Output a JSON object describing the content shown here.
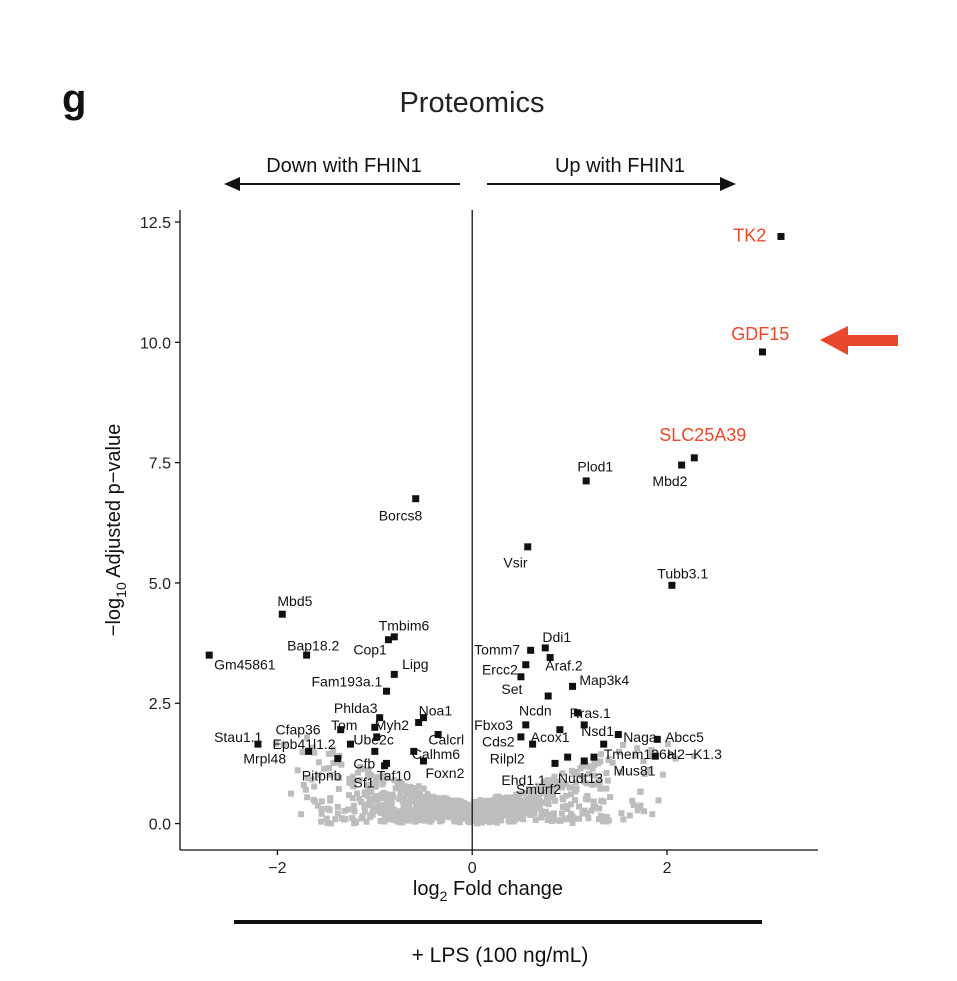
{
  "panel_label": "g",
  "colors": {
    "highlight": "#e8472c",
    "background_points": "#bdbdbd",
    "significant_points": "#111111"
  },
  "chart_data": {
    "type": "scatter",
    "title": "Proteomics",
    "xlabel_main": "log",
    "xlabel_sub": "2",
    "xlabel_rest": " Fold change",
    "ylabel_pre": "−log",
    "ylabel_sub": "10",
    "ylabel_rest": " Adjusted p−value",
    "xlim": [
      -3,
      3.55
    ],
    "ylim": [
      -0.55,
      12.75
    ],
    "xticks": [
      {
        "v": -2,
        "label": "−2"
      },
      {
        "v": 0,
        "label": "0"
      },
      {
        "v": 2,
        "label": "2"
      }
    ],
    "yticks": [
      {
        "v": 0,
        "label": "0.0"
      },
      {
        "v": 2.5,
        "label": "2.5"
      },
      {
        "v": 5,
        "label": "5.0"
      },
      {
        "v": 7.5,
        "label": "7.5"
      },
      {
        "v": 10,
        "label": "10.0"
      },
      {
        "v": 12.5,
        "label": "12.5"
      }
    ],
    "direction_left": "Down with FHIN1",
    "direction_right": "Up with FHIN1",
    "treatment": "+ LPS (100 ng/mL)",
    "significant": [
      {
        "label": "TK2",
        "x": 3.17,
        "y": 12.2,
        "highlight": true,
        "lx": 2.68,
        "ly": 12.2,
        "anchor": "start"
      },
      {
        "label": "GDF15",
        "x": 2.98,
        "y": 9.8,
        "highlight": true,
        "lx": 2.66,
        "ly": 10.15,
        "anchor": "start"
      },
      {
        "label": "SLC25A39",
        "x": 2.28,
        "y": 7.6,
        "highlight": true,
        "lx": 1.92,
        "ly": 8.05,
        "anchor": "start"
      },
      {
        "label": "Mbd2",
        "x": 2.15,
        "y": 7.45,
        "lx": 1.85,
        "ly": 7.12,
        "anchor": "start"
      },
      {
        "label": "Plod1",
        "x": 1.17,
        "y": 7.12,
        "lx": 1.08,
        "ly": 7.42,
        "anchor": "start"
      },
      {
        "label": "Borcs8",
        "x": -0.58,
        "y": 6.75,
        "lx": -0.96,
        "ly": 6.4,
        "anchor": "start"
      },
      {
        "label": "Vsir",
        "x": 0.57,
        "y": 5.75,
        "lx": 0.32,
        "ly": 5.42,
        "anchor": "start"
      },
      {
        "label": "Tubb3.1",
        "x": 2.05,
        "y": 4.95,
        "lx": 1.9,
        "ly": 5.2,
        "anchor": "start"
      },
      {
        "label": "Mbd5",
        "x": -1.95,
        "y": 4.35,
        "lx": -2.0,
        "ly": 4.62,
        "anchor": "start"
      },
      {
        "label": "Tmbim6",
        "x": -0.8,
        "y": 3.88,
        "lx": -0.96,
        "ly": 4.12,
        "anchor": "start"
      },
      {
        "label": "Cop1",
        "x": -0.86,
        "y": 3.82,
        "lx": -1.22,
        "ly": 3.62,
        "anchor": "start"
      },
      {
        "label": "Bap18.2",
        "x": -1.7,
        "y": 3.5,
        "lx": -1.9,
        "ly": 3.7,
        "anchor": "start"
      },
      {
        "label": "Gm45861",
        "x": -2.7,
        "y": 3.5,
        "lx": -2.65,
        "ly": 3.3,
        "anchor": "start"
      },
      {
        "label": "Lipg",
        "x": -0.8,
        "y": 3.1,
        "lx": -0.72,
        "ly": 3.32,
        "anchor": "start"
      },
      {
        "label": "Fam193a.1",
        "x": -0.88,
        "y": 2.75,
        "lx": -1.65,
        "ly": 2.95,
        "anchor": "start"
      },
      {
        "label": "Ddi1",
        "x": 0.75,
        "y": 3.65,
        "lx": 0.72,
        "ly": 3.88,
        "anchor": "start"
      },
      {
        "label": "Tomm7",
        "x": 0.6,
        "y": 3.6,
        "lx": 0.02,
        "ly": 3.62,
        "anchor": "start"
      },
      {
        "label": "Araf.2",
        "x": 0.8,
        "y": 3.45,
        "lx": 0.75,
        "ly": 3.28,
        "anchor": "start"
      },
      {
        "label": "Ercc2",
        "x": 0.55,
        "y": 3.3,
        "lx": 0.1,
        "ly": 3.2,
        "anchor": "start"
      },
      {
        "label": "Set",
        "x": 0.5,
        "y": 3.05,
        "lx": 0.3,
        "ly": 2.8,
        "anchor": "start"
      },
      {
        "label": "Map3k4",
        "x": 1.03,
        "y": 2.85,
        "lx": 1.1,
        "ly": 2.98,
        "anchor": "start"
      },
      {
        "label": "Ncdn",
        "x": 0.78,
        "y": 2.65,
        "lx": 0.48,
        "ly": 2.35,
        "anchor": "start"
      },
      {
        "label": "Rras.1",
        "x": 1.08,
        "y": 2.3,
        "lx": 1.0,
        "ly": 2.3,
        "anchor": "start"
      },
      {
        "label": "Fbxo3",
        "x": 0.55,
        "y": 2.05,
        "lx": 0.02,
        "ly": 2.05,
        "anchor": "start"
      },
      {
        "label": "Nsd1",
        "x": 1.15,
        "y": 2.05,
        "lx": 1.12,
        "ly": 1.92,
        "anchor": "start"
      },
      {
        "label": "Acox1",
        "x": 0.9,
        "y": 1.95,
        "lx": 0.6,
        "ly": 1.8,
        "anchor": "start"
      },
      {
        "label": "Cds2",
        "x": 0.5,
        "y": 1.8,
        "lx": 0.1,
        "ly": 1.7,
        "anchor": "start"
      },
      {
        "label": "Naga",
        "x": 1.5,
        "y": 1.85,
        "lx": 1.55,
        "ly": 1.8,
        "anchor": "start"
      },
      {
        "label": "Abcc5",
        "x": 1.9,
        "y": 1.75,
        "lx": 1.98,
        "ly": 1.8,
        "anchor": "start"
      },
      {
        "label": "Tmem126a",
        "x": 1.35,
        "y": 1.65,
        "lx": 1.35,
        "ly": 1.45,
        "anchor": "start"
      },
      {
        "label": "Rilpl2",
        "x": 0.62,
        "y": 1.65,
        "lx": 0.18,
        "ly": 1.35,
        "anchor": "start"
      },
      {
        "label": "H2−K1.3",
        "x": 1.88,
        "y": 1.4,
        "lx": 2.0,
        "ly": 1.45,
        "anchor": "start"
      },
      {
        "label": "Mus81",
        "x": 1.25,
        "y": 1.38,
        "lx": 1.45,
        "ly": 1.1,
        "anchor": "start"
      },
      {
        "label": "Ehd1.1",
        "x": 0.98,
        "y": 1.38,
        "lx": 0.3,
        "ly": 0.9,
        "anchor": "start"
      },
      {
        "label": "Nudt13",
        "x": 1.15,
        "y": 1.3,
        "lx": 0.88,
        "ly": 0.95,
        "anchor": "start"
      },
      {
        "label": "Smurf2",
        "x": 0.85,
        "y": 1.25,
        "lx": 0.45,
        "ly": 0.72,
        "anchor": "start"
      },
      {
        "label": "Noa1",
        "x": -0.5,
        "y": 2.2,
        "lx": -0.55,
        "ly": 2.35,
        "anchor": "start"
      },
      {
        "label": "Phlda3",
        "x": -0.95,
        "y": 2.2,
        "lx": -1.42,
        "ly": 2.4,
        "anchor": "start"
      },
      {
        "label": "Myh2",
        "x": -0.55,
        "y": 2.1,
        "lx": -1.0,
        "ly": 2.05,
        "anchor": "start"
      },
      {
        "label": "Tom",
        "x": -1.0,
        "y": 2.0,
        "lx": -1.45,
        "ly": 2.05,
        "anchor": "start"
      },
      {
        "label": "Cfap36",
        "x": -1.35,
        "y": 1.95,
        "lx": -2.02,
        "ly": 1.95,
        "anchor": "start"
      },
      {
        "label": "Calcrl",
        "x": -0.35,
        "y": 1.85,
        "lx": -0.45,
        "ly": 1.75,
        "anchor": "start"
      },
      {
        "label": "Ube2c",
        "x": -0.98,
        "y": 1.8,
        "lx": -1.22,
        "ly": 1.75,
        "anchor": "start"
      },
      {
        "label": "Stau1.1",
        "x": -2.2,
        "y": 1.65,
        "lx": -2.65,
        "ly": 1.8,
        "anchor": "start"
      },
      {
        "label": "Epb41l1.2",
        "x": -1.25,
        "y": 1.65,
        "lx": -2.05,
        "ly": 1.65,
        "anchor": "start"
      },
      {
        "label": "Calhm6",
        "x": -0.6,
        "y": 1.5,
        "lx": -0.62,
        "ly": 1.45,
        "anchor": "start"
      },
      {
        "label": "Mrpl48",
        "x": -1.68,
        "y": 1.5,
        "lx": -2.35,
        "ly": 1.35,
        "anchor": "start"
      },
      {
        "label": "Cfb",
        "x": -1.0,
        "y": 1.5,
        "lx": -1.22,
        "ly": 1.25,
        "anchor": "start"
      },
      {
        "label": "Foxn2",
        "x": -0.5,
        "y": 1.3,
        "lx": -0.48,
        "ly": 1.05,
        "anchor": "start"
      },
      {
        "label": "Taf10",
        "x": -0.88,
        "y": 1.25,
        "lx": -0.98,
        "ly": 1.0,
        "anchor": "start"
      },
      {
        "label": "Pitpnb",
        "x": -1.38,
        "y": 1.35,
        "lx": -1.75,
        "ly": 1.0,
        "anchor": "start"
      },
      {
        "label": "Sf1",
        "x": -0.9,
        "y": 1.2,
        "lx": -1.22,
        "ly": 0.85,
        "anchor": "start"
      }
    ]
  }
}
